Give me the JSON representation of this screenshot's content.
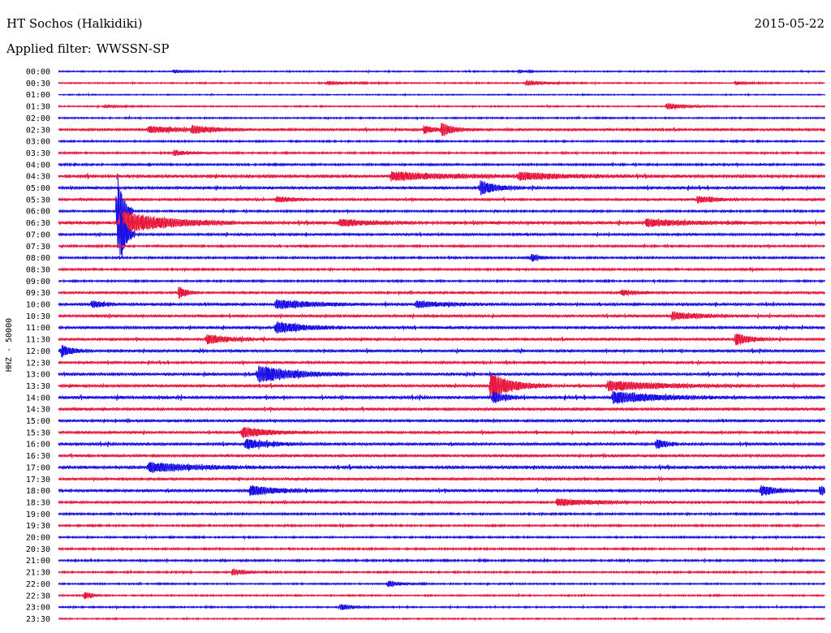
{
  "header": {
    "station": "HT Sochos (Halkidiki)",
    "date": "2015-05-22",
    "filter_label": "Applied filter:",
    "filter_value": "WWSSN-SP"
  },
  "chart_data": {
    "type": "line",
    "title": "HT Sochos (Halkidiki)",
    "ylabel": "HHZ - 50000",
    "row_labels": [
      "00:00",
      "00:30",
      "01:00",
      "01:30",
      "02:00",
      "02:30",
      "03:00",
      "03:30",
      "04:00",
      "04:30",
      "05:00",
      "05:30",
      "06:00",
      "06:30",
      "07:00",
      "07:30",
      "08:00",
      "08:30",
      "09:00",
      "09:30",
      "10:00",
      "10:30",
      "11:00",
      "11:30",
      "12:00",
      "12:30",
      "13:00",
      "13:30",
      "14:00",
      "14:30",
      "15:00",
      "15:30",
      "16:00",
      "16:30",
      "17:00",
      "17:30",
      "18:00",
      "18:30",
      "19:00",
      "19:30",
      "20:00",
      "20:30",
      "21:00",
      "21:30",
      "22:00",
      "22:30",
      "23:00",
      "23:30"
    ],
    "trace_colors": [
      "#1a10e6",
      "#e8183f"
    ],
    "grid": false,
    "rows_noise": [
      0.6,
      0.6,
      0.5,
      0.6,
      0.7,
      1.2,
      0.8,
      0.8,
      1.0,
      1.6,
      1.4,
      1.2,
      1.0,
      1.6,
      1.2,
      1.0,
      1.0,
      1.0,
      0.9,
      1.1,
      1.4,
      1.3,
      1.4,
      1.3,
      1.3,
      1.2,
      1.4,
      1.4,
      1.5,
      1.4,
      1.3,
      1.2,
      1.4,
      1.3,
      1.6,
      1.2,
      1.4,
      1.2,
      1.0,
      0.9,
      0.8,
      0.9,
      0.9,
      0.8,
      0.7,
      0.7,
      0.7,
      0.6
    ],
    "events": [
      {
        "row": 0,
        "minute": 4.5,
        "amp": 2,
        "dur": 0.5
      },
      {
        "row": 0,
        "minute": 18.0,
        "amp": 2,
        "dur": 0.3
      },
      {
        "row": 1,
        "minute": 10.5,
        "amp": 2,
        "dur": 1.0
      },
      {
        "row": 1,
        "minute": 18.3,
        "amp": 3,
        "dur": 0.8
      },
      {
        "row": 1,
        "minute": 26.5,
        "amp": 2,
        "dur": 0.6
      },
      {
        "row": 3,
        "minute": 1.8,
        "amp": 2,
        "dur": 0.6
      },
      {
        "row": 3,
        "minute": 23.8,
        "amp": 4,
        "dur": 0.8
      },
      {
        "row": 5,
        "minute": 3.5,
        "amp": 4,
        "dur": 1.2
      },
      {
        "row": 5,
        "minute": 5.2,
        "amp": 4,
        "dur": 0.8
      },
      {
        "row": 5,
        "minute": 14.3,
        "amp": 5,
        "dur": 0.4
      },
      {
        "row": 5,
        "minute": 15.0,
        "amp": 8,
        "dur": 0.4
      },
      {
        "row": 7,
        "minute": 4.5,
        "amp": 3,
        "dur": 0.8
      },
      {
        "row": 9,
        "minute": 13.0,
        "amp": 5,
        "dur": 2.0
      },
      {
        "row": 9,
        "minute": 18.0,
        "amp": 4,
        "dur": 1.5
      },
      {
        "row": 10,
        "minute": 16.5,
        "amp": 9,
        "dur": 0.6
      },
      {
        "row": 11,
        "minute": 8.5,
        "amp": 3,
        "dur": 0.8
      },
      {
        "row": 11,
        "minute": 25.0,
        "amp": 4,
        "dur": 0.8
      },
      {
        "row": 12,
        "minute": 2.3,
        "amp": 60,
        "dur": 0.2
      },
      {
        "row": 13,
        "minute": 2.4,
        "amp": 16,
        "dur": 1.5
      },
      {
        "row": 14,
        "minute": 2.4,
        "amp": 45,
        "dur": 0.2
      },
      {
        "row": 13,
        "minute": 11.0,
        "amp": 4,
        "dur": 1.0
      },
      {
        "row": 13,
        "minute": 23.0,
        "amp": 4,
        "dur": 1.5
      },
      {
        "row": 16,
        "minute": 18.5,
        "amp": 5,
        "dur": 0.3
      },
      {
        "row": 19,
        "minute": 4.7,
        "amp": 8,
        "dur": 0.3
      },
      {
        "row": 19,
        "minute": 22.0,
        "amp": 3,
        "dur": 0.8
      },
      {
        "row": 20,
        "minute": 1.3,
        "amp": 4,
        "dur": 0.5
      },
      {
        "row": 20,
        "minute": 8.5,
        "amp": 6,
        "dur": 1.2
      },
      {
        "row": 20,
        "minute": 14.0,
        "amp": 4,
        "dur": 1.0
      },
      {
        "row": 21,
        "minute": 24.0,
        "amp": 5,
        "dur": 1.0
      },
      {
        "row": 22,
        "minute": 8.5,
        "amp": 7,
        "dur": 1.0
      },
      {
        "row": 23,
        "minute": 5.8,
        "amp": 6,
        "dur": 0.8
      },
      {
        "row": 23,
        "minute": 26.5,
        "amp": 8,
        "dur": 0.5
      },
      {
        "row": 24,
        "minute": 0.1,
        "amp": 8,
        "dur": 0.4
      },
      {
        "row": 26,
        "minute": 7.8,
        "amp": 12,
        "dur": 1.2
      },
      {
        "row": 27,
        "minute": 16.9,
        "amp": 16,
        "dur": 0.8
      },
      {
        "row": 27,
        "minute": 21.5,
        "amp": 6,
        "dur": 2.0
      },
      {
        "row": 28,
        "minute": 21.7,
        "amp": 8,
        "dur": 1.5
      },
      {
        "row": 28,
        "minute": 17.0,
        "amp": 8,
        "dur": 0.4
      },
      {
        "row": 31,
        "minute": 7.2,
        "amp": 6,
        "dur": 1.0
      },
      {
        "row": 32,
        "minute": 7.3,
        "amp": 6,
        "dur": 0.8
      },
      {
        "row": 32,
        "minute": 23.4,
        "amp": 7,
        "dur": 0.3
      },
      {
        "row": 34,
        "minute": 3.5,
        "amp": 6,
        "dur": 1.5
      },
      {
        "row": 36,
        "minute": 7.5,
        "amp": 6,
        "dur": 1.0
      },
      {
        "row": 36,
        "minute": 27.5,
        "amp": 6,
        "dur": 0.6
      },
      {
        "row": 36,
        "minute": 29.8,
        "amp": 6,
        "dur": 0.3
      },
      {
        "row": 37,
        "minute": 19.5,
        "amp": 4,
        "dur": 1.5
      },
      {
        "row": 43,
        "minute": 6.8,
        "amp": 4,
        "dur": 0.6
      },
      {
        "row": 44,
        "minute": 12.9,
        "amp": 4,
        "dur": 0.5
      },
      {
        "row": 45,
        "minute": 1.0,
        "amp": 5,
        "dur": 0.3
      },
      {
        "row": 46,
        "minute": 11.0,
        "amp": 4,
        "dur": 0.5
      }
    ]
  }
}
